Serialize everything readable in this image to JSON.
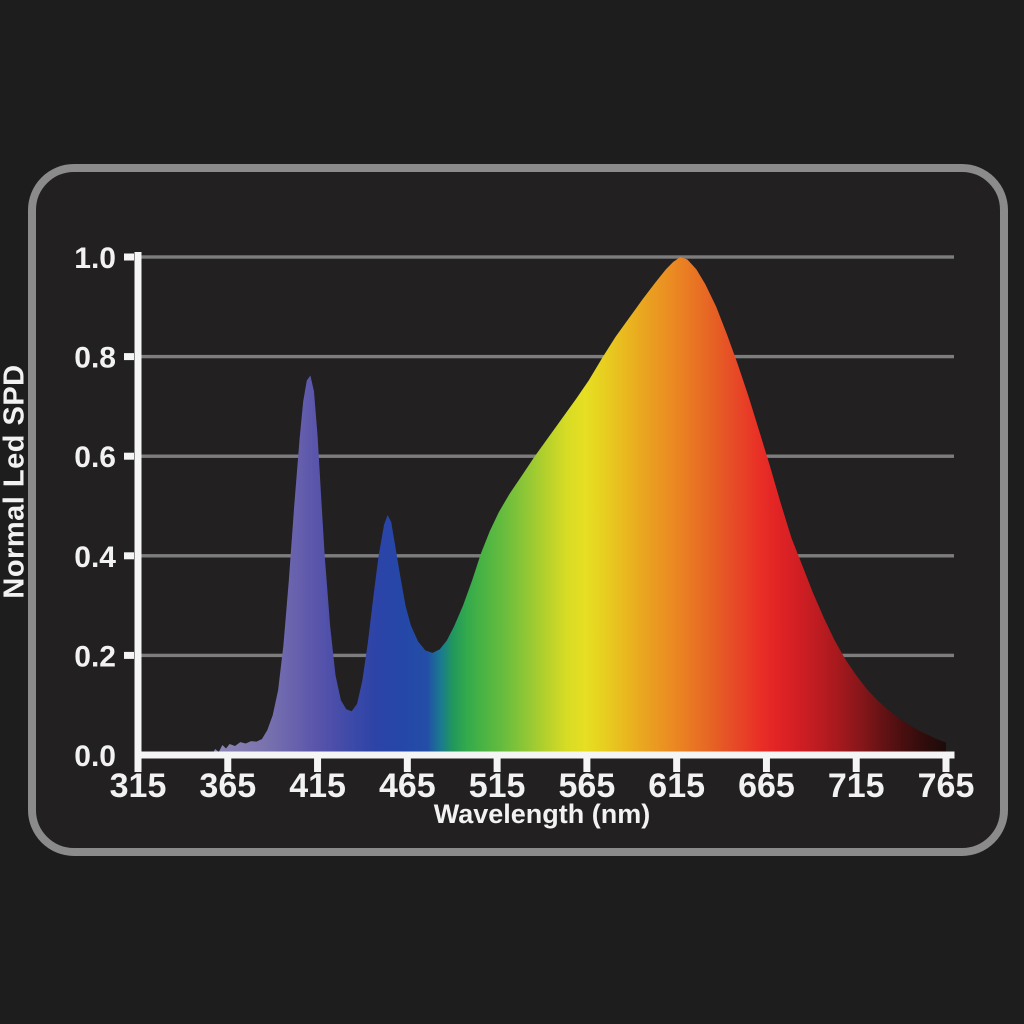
{
  "page": {
    "background": "#1e1d1d",
    "panel_background": "#222020",
    "panel_border_color": "#8b8b8b"
  },
  "chart_data": {
    "type": "area",
    "title": "",
    "xlabel": "Wavelength (nm)",
    "ylabel": "Normal Led SPD",
    "xlim": [
      315,
      765
    ],
    "ylim": [
      0.0,
      1.0
    ],
    "x_ticks": [
      315,
      365,
      415,
      465,
      515,
      565,
      615,
      665,
      715,
      765
    ],
    "y_ticks": [
      0.0,
      0.2,
      0.4,
      0.6,
      0.8,
      1.0
    ],
    "grid": "horizontal-only",
    "legend": "none",
    "axis_color": "#f5f5f5",
    "gridline_color": "#7d7d7d",
    "tick_label_color": "#f2f2f2",
    "notable_features": {
      "violet_peak": {
        "wavelength": 410,
        "value": 0.76
      },
      "violet_blue_dip": {
        "wavelength": 433,
        "value": 0.09
      },
      "blue_peak": {
        "wavelength": 453,
        "value": 0.48
      },
      "blue_green_dip": {
        "wavelength": 479,
        "value": 0.21
      },
      "main_peak": {
        "wavelength": 616,
        "value": 1.0
      },
      "right_tail_end": {
        "wavelength": 765,
        "value": 0.02
      }
    },
    "series": [
      {
        "name": "Normal LED SPD",
        "fill": "spectrum-gradient",
        "points": [
          [
            356,
            0
          ],
          [
            358,
            0.012
          ],
          [
            360,
            0.006
          ],
          [
            362,
            0.02
          ],
          [
            364,
            0.013
          ],
          [
            366,
            0.022
          ],
          [
            369,
            0.018
          ],
          [
            372,
            0.026
          ],
          [
            375,
            0.023
          ],
          [
            378,
            0.028
          ],
          [
            381,
            0.027
          ],
          [
            384,
            0.032
          ],
          [
            387,
            0.05
          ],
          [
            390,
            0.08
          ],
          [
            393,
            0.13
          ],
          [
            396,
            0.22
          ],
          [
            399,
            0.35
          ],
          [
            402,
            0.5
          ],
          [
            405,
            0.635
          ],
          [
            407,
            0.71
          ],
          [
            409,
            0.752
          ],
          [
            411,
            0.762
          ],
          [
            413,
            0.73
          ],
          [
            415,
            0.64
          ],
          [
            417,
            0.52
          ],
          [
            419,
            0.4
          ],
          [
            422,
            0.26
          ],
          [
            425,
            0.16
          ],
          [
            428,
            0.11
          ],
          [
            431,
            0.092
          ],
          [
            434,
            0.088
          ],
          [
            437,
            0.103
          ],
          [
            440,
            0.15
          ],
          [
            443,
            0.225
          ],
          [
            446,
            0.315
          ],
          [
            449,
            0.4
          ],
          [
            452,
            0.462
          ],
          [
            454,
            0.482
          ],
          [
            456,
            0.468
          ],
          [
            458,
            0.425
          ],
          [
            461,
            0.36
          ],
          [
            464,
            0.3
          ],
          [
            467,
            0.26
          ],
          [
            471,
            0.228
          ],
          [
            475,
            0.21
          ],
          [
            479,
            0.205
          ],
          [
            483,
            0.212
          ],
          [
            487,
            0.23
          ],
          [
            491,
            0.258
          ],
          [
            496,
            0.3
          ],
          [
            501,
            0.35
          ],
          [
            506,
            0.405
          ],
          [
            511,
            0.45
          ],
          [
            516,
            0.488
          ],
          [
            522,
            0.525
          ],
          [
            529,
            0.562
          ],
          [
            536,
            0.6
          ],
          [
            543,
            0.635
          ],
          [
            551,
            0.675
          ],
          [
            559,
            0.715
          ],
          [
            566,
            0.752
          ],
          [
            574,
            0.8
          ],
          [
            581,
            0.84
          ],
          [
            589,
            0.88
          ],
          [
            596,
            0.915
          ],
          [
            603,
            0.948
          ],
          [
            609,
            0.975
          ],
          [
            613,
            0.99
          ],
          [
            617,
            1.0
          ],
          [
            621,
            0.995
          ],
          [
            626,
            0.975
          ],
          [
            631,
            0.945
          ],
          [
            637,
            0.9
          ],
          [
            643,
            0.845
          ],
          [
            649,
            0.785
          ],
          [
            655,
            0.72
          ],
          [
            661,
            0.65
          ],
          [
            667,
            0.58
          ],
          [
            673,
            0.505
          ],
          [
            679,
            0.435
          ],
          [
            685,
            0.38
          ],
          [
            691,
            0.325
          ],
          [
            697,
            0.275
          ],
          [
            703,
            0.23
          ],
          [
            709,
            0.192
          ],
          [
            715,
            0.16
          ],
          [
            721,
            0.132
          ],
          [
            727,
            0.109
          ],
          [
            733,
            0.09
          ],
          [
            739,
            0.073
          ],
          [
            745,
            0.059
          ],
          [
            751,
            0.047
          ],
          [
            757,
            0.037
          ],
          [
            762,
            0.029
          ],
          [
            765,
            0.025
          ]
        ]
      }
    ],
    "spectrum_gradient": [
      {
        "wavelength": 356,
        "color": "#8F88B5"
      },
      {
        "wavelength": 385,
        "color": "#7A73AE"
      },
      {
        "wavelength": 400,
        "color": "#6A64AE"
      },
      {
        "wavelength": 412,
        "color": "#5D57AB"
      },
      {
        "wavelength": 424,
        "color": "#4B4EA9"
      },
      {
        "wavelength": 436,
        "color": "#3A49A8"
      },
      {
        "wavelength": 448,
        "color": "#2C43A7"
      },
      {
        "wavelength": 462,
        "color": "#2547A8"
      },
      {
        "wavelength": 476,
        "color": "#234EA7"
      },
      {
        "wavelength": 484,
        "color": "#1A7C8E"
      },
      {
        "wavelength": 490,
        "color": "#21965F"
      },
      {
        "wavelength": 498,
        "color": "#33AA4C"
      },
      {
        "wavelength": 508,
        "color": "#4CB443"
      },
      {
        "wavelength": 518,
        "color": "#66BC3E"
      },
      {
        "wavelength": 530,
        "color": "#8CC636"
      },
      {
        "wavelength": 542,
        "color": "#B4D02C"
      },
      {
        "wavelength": 554,
        "color": "#D8DC25"
      },
      {
        "wavelength": 564,
        "color": "#E6DF22"
      },
      {
        "wavelength": 576,
        "color": "#E8CC20"
      },
      {
        "wavelength": 588,
        "color": "#E9B51F"
      },
      {
        "wavelength": 600,
        "color": "#EA9F21"
      },
      {
        "wavelength": 612,
        "color": "#EB8B22"
      },
      {
        "wavelength": 624,
        "color": "#E97623"
      },
      {
        "wavelength": 636,
        "color": "#E66024"
      },
      {
        "wavelength": 648,
        "color": "#E74927"
      },
      {
        "wavelength": 660,
        "color": "#E93126"
      },
      {
        "wavelength": 670,
        "color": "#E32425"
      },
      {
        "wavelength": 682,
        "color": "#D21F24"
      },
      {
        "wavelength": 694,
        "color": "#BC1C21"
      },
      {
        "wavelength": 706,
        "color": "#A3191D"
      },
      {
        "wavelength": 718,
        "color": "#85161A"
      },
      {
        "wavelength": 730,
        "color": "#641214"
      },
      {
        "wavelength": 742,
        "color": "#470E0F"
      },
      {
        "wavelength": 754,
        "color": "#2E0C0B"
      },
      {
        "wavelength": 765,
        "color": "#1C0B0A"
      }
    ]
  }
}
